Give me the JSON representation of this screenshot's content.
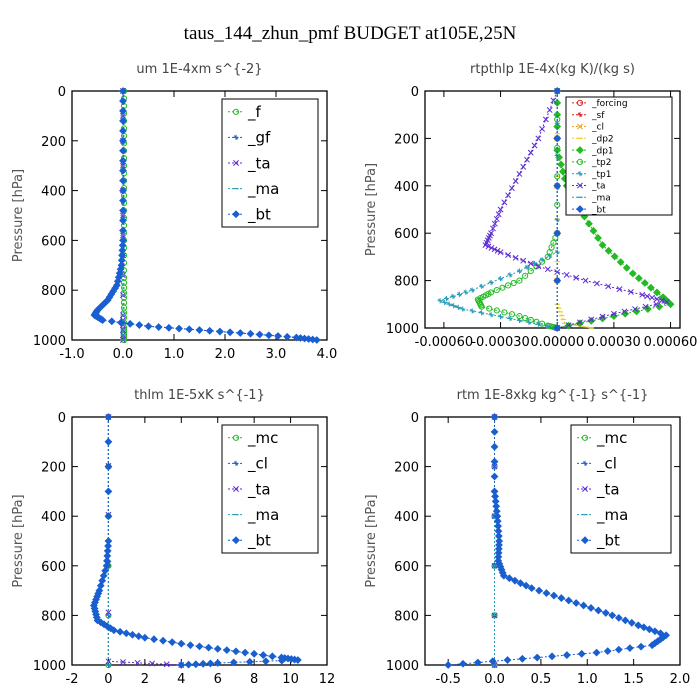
{
  "figure_title": "taus_144_zhun_pmf  BUDGET at105E,25N",
  "colors": {
    "green": "#22bb22",
    "blue": "#1a5fd0",
    "purple": "#5b2ccf",
    "teal": "#2a9bb8",
    "red": "#e02020",
    "orange": "#f0a020",
    "yellow": "#e8d020",
    "frame": "#000000"
  },
  "chart_data": [
    {
      "type": "line",
      "title": "um   1E-4xm s^{-2}",
      "ylabel": "Pressure [hPa]",
      "xlim": [
        -1.0,
        4.0
      ],
      "ylim": [
        1000,
        0
      ],
      "xticks": [
        -1.0,
        0.0,
        1.0,
        2.0,
        3.0,
        4.0
      ],
      "xtick_labels": [
        "-1.0",
        "0.0",
        "1.0",
        "2.0",
        "3.0",
        "4.0"
      ],
      "yticks": [
        0,
        200,
        400,
        600,
        800,
        1000
      ],
      "ytick_labels": [
        "0",
        "200",
        "400",
        "600",
        "800",
        "1000"
      ],
      "legend_position": "top-right",
      "series": [
        {
          "name": "_f",
          "color": "#22bb22",
          "points": [
            [
              0.02,
              0
            ],
            [
              0.02,
              150
            ],
            [
              0.02,
              300
            ],
            [
              0.02,
              450
            ],
            [
              0.02,
              600
            ],
            [
              0.02,
              750
            ],
            [
              0.02,
              850
            ],
            [
              0.02,
              950
            ],
            [
              0.02,
              1000
            ]
          ]
        },
        {
          "name": "_gf",
          "color": "#1a5fd0",
          "points": [
            [
              0.0,
              0
            ],
            [
              0.0,
              200
            ],
            [
              0.0,
              400
            ],
            [
              0.0,
              600
            ],
            [
              -0.03,
              700
            ],
            [
              -0.12,
              780
            ],
            [
              -0.3,
              840
            ],
            [
              -0.5,
              880
            ],
            [
              -0.56,
              900
            ],
            [
              -0.4,
              920
            ],
            [
              0.5,
              945
            ],
            [
              1.5,
              960
            ],
            [
              2.5,
              975
            ],
            [
              3.4,
              990
            ],
            [
              3.8,
              1000
            ]
          ]
        },
        {
          "name": "_ta",
          "color": "#5b2ccf",
          "points": [
            [
              0.0,
              0
            ],
            [
              0.0,
              500
            ],
            [
              0.0,
              900
            ],
            [
              0.0,
              1000
            ]
          ]
        },
        {
          "name": "_ma",
          "color": "#2a9bb8",
          "points": [
            [
              0.0,
              0
            ],
            [
              0.0,
              500
            ],
            [
              0.0,
              900
            ],
            [
              0.0,
              1000
            ]
          ]
        },
        {
          "name": "_bt",
          "color": "#1a5fd0",
          "points": [
            [
              0.0,
              0
            ],
            [
              0.0,
              200
            ],
            [
              0.0,
              400
            ],
            [
              0.0,
              600
            ],
            [
              -0.03,
              700
            ],
            [
              -0.12,
              780
            ],
            [
              -0.3,
              840
            ],
            [
              -0.5,
              880
            ],
            [
              -0.56,
              900
            ],
            [
              -0.4,
              920
            ],
            [
              0.5,
              945
            ],
            [
              1.5,
              960
            ],
            [
              2.5,
              975
            ],
            [
              3.4,
              990
            ],
            [
              3.8,
              1000
            ]
          ]
        }
      ]
    },
    {
      "type": "line",
      "title": "rtpthlp   1E-4x(kg K)/(kg s)",
      "ylabel": "Pressure [hPa]",
      "xlim": [
        -0.0007,
        0.00065
      ],
      "ylim": [
        1000,
        0
      ],
      "xticks": [
        -0.0006,
        -0.0003,
        0.0,
        0.0003,
        0.0006
      ],
      "xtick_labels": [
        "-0.00060",
        "-0.00030",
        "0.00000",
        "0.00030",
        "0.00060"
      ],
      "yticks": [
        0,
        200,
        400,
        600,
        800,
        1000
      ],
      "ytick_labels": [
        "0",
        "200",
        "400",
        "600",
        "800",
        "1000"
      ],
      "legend_position": "top-right",
      "series": [
        {
          "name": "_forcing",
          "color": "#e02020",
          "points": [
            [
              0.0,
              0
            ],
            [
              0.0,
              1000
            ]
          ]
        },
        {
          "name": "_sf",
          "color": "#e02020",
          "points": [
            [
              0.0,
              0
            ],
            [
              0.0,
              1000
            ]
          ]
        },
        {
          "name": "_cl",
          "color": "#f0a020",
          "points": [
            [
              0.0,
              0
            ],
            [
              0.0,
              1000
            ]
          ]
        },
        {
          "name": "_dp2",
          "color": "#e8d020",
          "points": [
            [
              0.0,
              0
            ],
            [
              0.0,
              900
            ],
            [
              4e-05,
              980
            ],
            [
              0.00018,
              1000
            ]
          ]
        },
        {
          "name": "_dp1",
          "color": "#22bb22",
          "points": [
            [
              0.0,
              0
            ],
            [
              0.0,
              250
            ],
            [
              5e-05,
              400
            ],
            [
              0.00012,
              500
            ],
            [
              0.00024,
              650
            ],
            [
              0.0004,
              770
            ],
            [
              0.00056,
              870
            ],
            [
              0.0006,
              900
            ],
            [
              0.0003,
              950
            ],
            [
              0.0,
              1000
            ]
          ]
        },
        {
          "name": "_tp2",
          "color": "#22bb22",
          "points": [
            [
              0.0,
              0
            ],
            [
              0.0,
              600
            ],
            [
              -5e-05,
              700
            ],
            [
              -0.0002,
              800
            ],
            [
              -0.00035,
              850
            ],
            [
              -0.00042,
              880
            ],
            [
              -0.0004,
              910
            ],
            [
              -0.0002,
              950
            ],
            [
              -5e-05,
              990
            ],
            [
              0.0,
              1000
            ]
          ]
        },
        {
          "name": "_tp1",
          "color": "#2a9bb8",
          "points": [
            [
              0.0,
              0
            ],
            [
              0.0,
              680
            ],
            [
              -0.0002,
              760
            ],
            [
              -0.00045,
              840
            ],
            [
              -0.00062,
              885
            ],
            [
              -0.0005,
              920
            ],
            [
              -0.00025,
              960
            ],
            [
              0.0,
              1000
            ]
          ]
        },
        {
          "name": "_ta",
          "color": "#5b2ccf",
          "points": [
            [
              0.0,
              0
            ],
            [
              -0.0001,
              200
            ],
            [
              -0.0002,
              350
            ],
            [
              -0.0003,
              500
            ],
            [
              -0.00035,
              600
            ],
            [
              -0.00038,
              650
            ],
            [
              -0.0003,
              680
            ],
            [
              -0.0001,
              740
            ],
            [
              0.00015,
              800
            ],
            [
              0.00045,
              860
            ],
            [
              0.00058,
              890
            ],
            [
              0.0003,
              940
            ],
            [
              0.0,
              1000
            ]
          ]
        },
        {
          "name": "_ma",
          "color": "#2a9bb8",
          "points": [
            [
              0.0,
              0
            ],
            [
              0.0,
              1000
            ]
          ]
        },
        {
          "name": "_bt",
          "color": "#1a5fd0",
          "points": [
            [
              0.0,
              0
            ],
            [
              0.0,
              1000
            ]
          ]
        }
      ]
    },
    {
      "type": "line",
      "title": "thlm   1E-5xK s^{-1}",
      "ylabel": "Pressure [hPa]",
      "xlim": [
        -2,
        12
      ],
      "ylim": [
        1000,
        0
      ],
      "xticks": [
        -2,
        0,
        2,
        4,
        6,
        8,
        10,
        12
      ],
      "xtick_labels": [
        "-2",
        "0",
        "2",
        "4",
        "6",
        "8",
        "10",
        "12"
      ],
      "yticks": [
        0,
        200,
        400,
        600,
        800,
        1000
      ],
      "ytick_labels": [
        "0",
        "200",
        "400",
        "600",
        "800",
        "1000"
      ],
      "legend_position": "top-right",
      "series": [
        {
          "name": "_mc",
          "color": "#22bb22",
          "points": [
            [
              0.0,
              0
            ],
            [
              0.0,
              1000
            ]
          ]
        },
        {
          "name": "_cl",
          "color": "#1a5fd0",
          "points": [
            [
              0.0,
              0
            ],
            [
              0.0,
              1000
            ]
          ]
        },
        {
          "name": "_ta",
          "color": "#5b2ccf",
          "points": [
            [
              0.0,
              0
            ],
            [
              0.0,
              985
            ],
            [
              4.0,
              1000
            ]
          ]
        },
        {
          "name": "_ma",
          "color": "#2a9bb8",
          "points": [
            [
              0.0,
              0
            ],
            [
              0.0,
              1000
            ]
          ]
        },
        {
          "name": "_bt",
          "color": "#1a5fd0",
          "points": [
            [
              0.0,
              0
            ],
            [
              0.0,
              500
            ],
            [
              -0.1,
              600
            ],
            [
              -0.5,
              700
            ],
            [
              -0.8,
              760
            ],
            [
              -0.6,
              820
            ],
            [
              0.3,
              860
            ],
            [
              2.0,
              890
            ],
            [
              4.5,
              920
            ],
            [
              7.0,
              945
            ],
            [
              9.5,
              970
            ],
            [
              10.4,
              980
            ],
            [
              6.0,
              992
            ],
            [
              4.0,
              1000
            ]
          ]
        }
      ]
    },
    {
      "type": "line",
      "title": "rtm   1E-8xkg kg^{-1} s^{-1}",
      "ylabel": "Pressure [hPa]",
      "xlim": [
        -0.75,
        2.0
      ],
      "ylim": [
        1000,
        0
      ],
      "xticks": [
        -0.5,
        0.0,
        0.5,
        1.0,
        1.5,
        2.0
      ],
      "xtick_labels": [
        "-0.5",
        "0.0",
        "0.5",
        "1.0",
        "1.5",
        "2.0"
      ],
      "yticks": [
        0,
        200,
        400,
        600,
        800,
        1000
      ],
      "ytick_labels": [
        "0",
        "200",
        "400",
        "600",
        "800",
        "1000"
      ],
      "legend_position": "top-right",
      "series": [
        {
          "name": "_mc",
          "color": "#22bb22",
          "points": [
            [
              0.0,
              0
            ],
            [
              0.0,
              1000
            ]
          ]
        },
        {
          "name": "_cl",
          "color": "#1a5fd0",
          "points": [
            [
              0.0,
              0
            ],
            [
              0.0,
              1000
            ]
          ]
        },
        {
          "name": "_ta",
          "color": "#5b2ccf",
          "points": [
            [
              0.0,
              0
            ],
            [
              0.0,
              1000
            ]
          ]
        },
        {
          "name": "_ma",
          "color": "#2a9bb8",
          "points": [
            [
              0.0,
              0
            ],
            [
              0.0,
              1000
            ]
          ]
        },
        {
          "name": "_bt",
          "color": "#1a5fd0",
          "points": [
            [
              0.0,
              0
            ],
            [
              0.0,
              300
            ],
            [
              0.03,
              400
            ],
            [
              0.05,
              500
            ],
            [
              0.04,
              580
            ],
            [
              0.1,
              640
            ],
            [
              0.4,
              690
            ],
            [
              0.8,
              740
            ],
            [
              1.2,
              790
            ],
            [
              1.55,
              840
            ],
            [
              1.85,
              880
            ],
            [
              1.7,
              920
            ],
            [
              1.1,
              950
            ],
            [
              0.3,
              975
            ],
            [
              -0.5,
              1000
            ]
          ]
        }
      ]
    }
  ]
}
